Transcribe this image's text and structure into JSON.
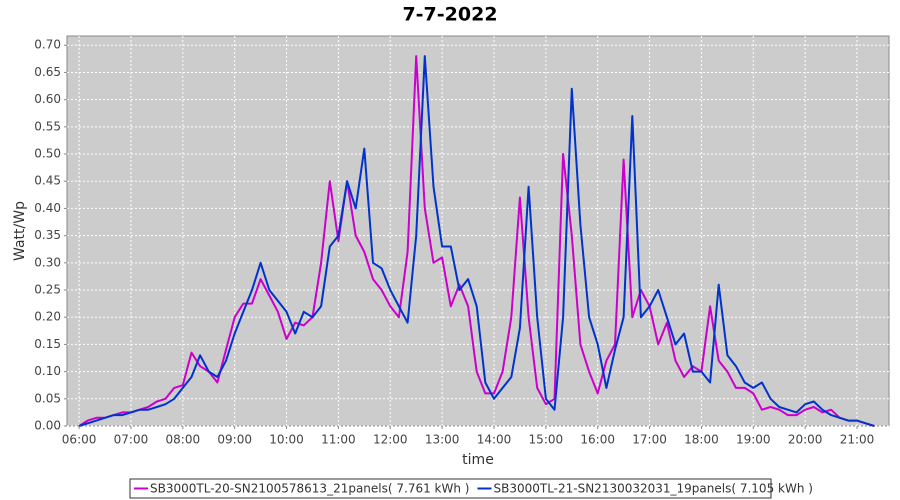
{
  "chart_data": {
    "type": "line",
    "title": "7-7-2022",
    "x_label": "time",
    "y_label": "Watt/Wp",
    "grid": true,
    "legend": "bottom",
    "xlim": [
      "05:46",
      "21:37"
    ],
    "xticks": [
      "06:00",
      "07:00",
      "08:00",
      "09:00",
      "10:00",
      "11:00",
      "12:00",
      "13:00",
      "14:00",
      "15:00",
      "16:00",
      "17:00",
      "18:00",
      "19:00",
      "20:00",
      "21:00"
    ],
    "ylim": [
      0,
      0.717
    ],
    "yticks": [
      {
        "value": 0,
        "label": "0.00"
      },
      {
        "value": 0.05,
        "label": "0.05"
      },
      {
        "value": 0.1,
        "label": "0.10"
      },
      {
        "value": 0.15,
        "label": "0.15"
      },
      {
        "value": 0.2,
        "label": "0.20"
      },
      {
        "value": 0.25,
        "label": "0.25"
      },
      {
        "value": 0.3,
        "label": "0.30"
      },
      {
        "value": 0.35,
        "label": "0.35"
      },
      {
        "value": 0.4,
        "label": "0.40"
      },
      {
        "value": 0.45,
        "label": "0.45"
      },
      {
        "value": 0.5,
        "label": "0.50"
      },
      {
        "value": 0.55,
        "label": "0.55"
      },
      {
        "value": 0.6,
        "label": "0.60"
      },
      {
        "value": 0.65,
        "label": "0.65"
      },
      {
        "value": 0.7,
        "label": "0.70"
      }
    ],
    "x": [
      "06:00",
      "06:10",
      "06:20",
      "06:30",
      "06:40",
      "06:50",
      "07:00",
      "07:10",
      "07:20",
      "07:30",
      "07:40",
      "07:50",
      "08:00",
      "08:10",
      "08:20",
      "08:30",
      "08:40",
      "08:50",
      "09:00",
      "09:10",
      "09:20",
      "09:30",
      "09:40",
      "09:50",
      "10:00",
      "10:10",
      "10:20",
      "10:30",
      "10:40",
      "10:50",
      "11:00",
      "11:10",
      "11:20",
      "11:30",
      "11:40",
      "11:50",
      "12:00",
      "12:10",
      "12:20",
      "12:30",
      "12:40",
      "12:50",
      "13:00",
      "13:10",
      "13:20",
      "13:30",
      "13:40",
      "13:50",
      "14:00",
      "14:10",
      "14:20",
      "14:30",
      "14:40",
      "14:50",
      "15:00",
      "15:10",
      "15:20",
      "15:30",
      "15:40",
      "15:50",
      "16:00",
      "16:10",
      "16:20",
      "16:30",
      "16:40",
      "16:50",
      "17:00",
      "17:10",
      "17:20",
      "17:30",
      "17:40",
      "17:50",
      "18:00",
      "18:10",
      "18:20",
      "18:30",
      "18:40",
      "18:50",
      "19:00",
      "19:10",
      "19:20",
      "19:30",
      "19:40",
      "19:50",
      "20:00",
      "20:10",
      "20:20",
      "20:30",
      "20:40",
      "20:50",
      "21:00",
      "21:10",
      "21:20"
    ],
    "series": [
      {
        "name": "SB3000TL-20-SN2100578613_21panels( 7.761 kWh )",
        "color": "#cc00cc",
        "values": [
          0.0,
          0.01,
          0.015,
          0.015,
          0.02,
          0.025,
          0.025,
          0.03,
          0.035,
          0.045,
          0.05,
          0.07,
          0.075,
          0.135,
          0.11,
          0.1,
          0.08,
          0.14,
          0.2,
          0.225,
          0.225,
          0.27,
          0.24,
          0.21,
          0.16,
          0.19,
          0.185,
          0.2,
          0.3,
          0.45,
          0.34,
          0.45,
          0.35,
          0.32,
          0.27,
          0.25,
          0.22,
          0.2,
          0.32,
          0.68,
          0.4,
          0.3,
          0.31,
          0.22,
          0.26,
          0.22,
          0.1,
          0.06,
          0.06,
          0.1,
          0.2,
          0.42,
          0.2,
          0.07,
          0.04,
          0.05,
          0.5,
          0.35,
          0.15,
          0.1,
          0.06,
          0.12,
          0.15,
          0.49,
          0.2,
          0.25,
          0.22,
          0.15,
          0.19,
          0.12,
          0.09,
          0.11,
          0.1,
          0.22,
          0.12,
          0.1,
          0.07,
          0.07,
          0.06,
          0.03,
          0.035,
          0.03,
          0.02,
          0.02,
          0.03,
          0.035,
          0.025,
          0.03,
          0.015,
          0.01,
          0.01,
          0.005,
          0.0
        ]
      },
      {
        "name": "SB3000TL-21-SN2130032031_19panels( 7.105 kWh )",
        "color": "#0033cc",
        "values": [
          0.0,
          0.005,
          0.01,
          0.015,
          0.02,
          0.02,
          0.025,
          0.03,
          0.03,
          0.035,
          0.04,
          0.05,
          0.07,
          0.09,
          0.13,
          0.1,
          0.09,
          0.12,
          0.17,
          0.21,
          0.25,
          0.3,
          0.25,
          0.23,
          0.21,
          0.17,
          0.21,
          0.2,
          0.22,
          0.33,
          0.35,
          0.45,
          0.4,
          0.51,
          0.3,
          0.29,
          0.25,
          0.22,
          0.19,
          0.35,
          0.68,
          0.44,
          0.33,
          0.33,
          0.25,
          0.27,
          0.22,
          0.08,
          0.05,
          0.07,
          0.09,
          0.18,
          0.44,
          0.2,
          0.05,
          0.03,
          0.2,
          0.62,
          0.37,
          0.2,
          0.15,
          0.07,
          0.14,
          0.2,
          0.57,
          0.2,
          0.22,
          0.25,
          0.2,
          0.15,
          0.17,
          0.1,
          0.1,
          0.08,
          0.26,
          0.13,
          0.11,
          0.08,
          0.07,
          0.08,
          0.05,
          0.035,
          0.03,
          0.025,
          0.04,
          0.045,
          0.03,
          0.02,
          0.015,
          0.01,
          0.01,
          0.005,
          0.0
        ]
      }
    ]
  }
}
